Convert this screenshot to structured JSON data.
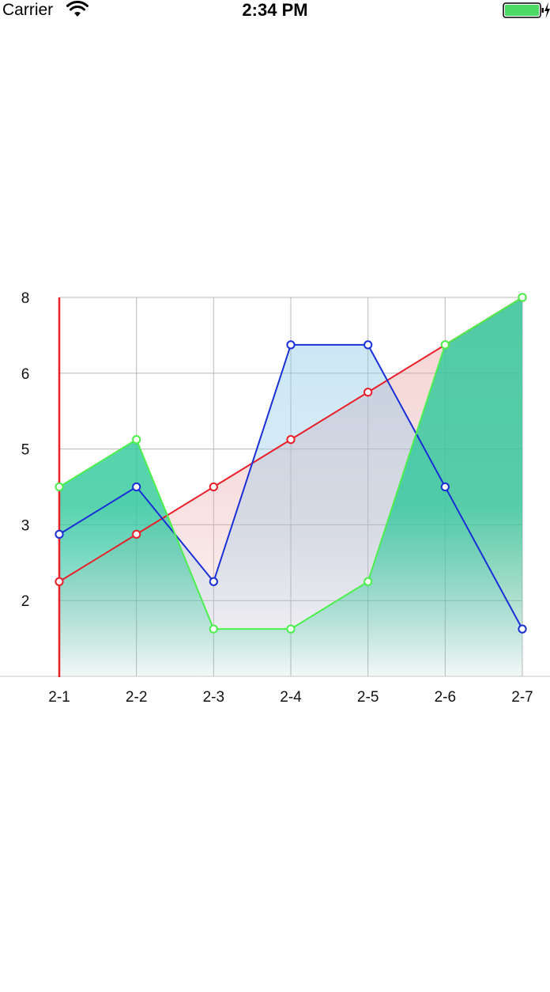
{
  "status_bar": {
    "carrier": "Carrier",
    "time": "2:34 PM",
    "wifi_icon": "wifi-icon",
    "battery_icon": "battery-charging-icon",
    "battery_color": "#4cd964"
  },
  "chart_data": {
    "type": "area",
    "categories": [
      "2-1",
      "2-2",
      "2-3",
      "2-4",
      "2-5",
      "2-6",
      "2-7"
    ],
    "y_tick_labels": [
      "2",
      "3",
      "5",
      "6",
      "8"
    ],
    "ylim": [
      0,
      8
    ],
    "grid": true,
    "series": [
      {
        "color": "#e8202a",
        "fill_color": "#e8a0a0",
        "values": [
          2,
          3,
          4,
          5,
          6,
          7,
          8
        ]
      },
      {
        "color": "#1a2fd6",
        "fill_color": "#8ec8e8",
        "values": [
          3,
          4,
          2,
          7,
          7,
          4,
          1
        ]
      },
      {
        "color": "#4cf04c",
        "fill_color": "#2ec89a",
        "values": [
          4,
          5,
          1,
          1,
          2,
          7,
          8
        ]
      }
    ]
  }
}
